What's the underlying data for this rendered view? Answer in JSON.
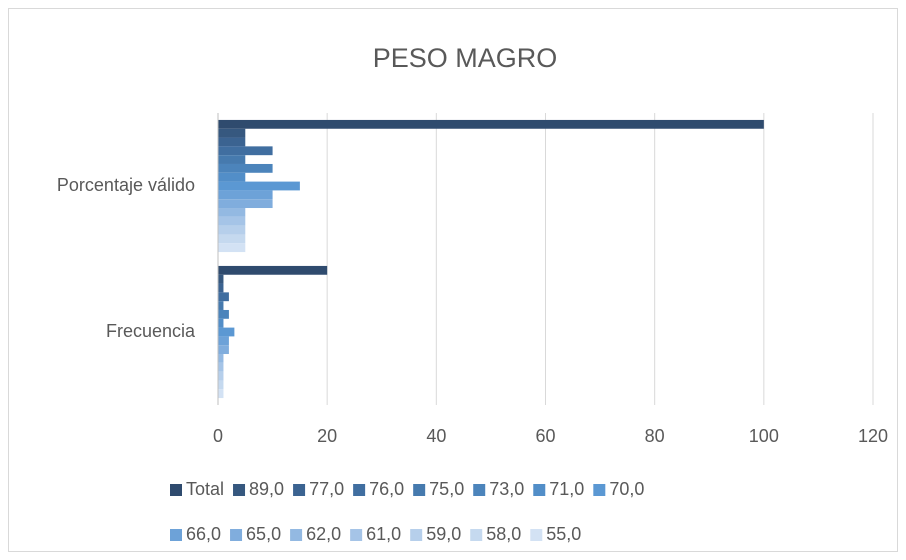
{
  "chart_data": {
    "type": "bar",
    "orientation": "horizontal",
    "title": "PESO MAGRO",
    "categories": [
      "Porcentaje válido",
      "Frecuencia"
    ],
    "series": [
      {
        "name": "Total",
        "color": "#2f4b6e",
        "values": [
          100,
          20
        ]
      },
      {
        "name": "89,0",
        "color": "#36587f",
        "values": [
          5,
          1
        ]
      },
      {
        "name": "77,0",
        "color": "#3b6391",
        "values": [
          5,
          1
        ]
      },
      {
        "name": "76,0",
        "color": "#406ea0",
        "values": [
          10,
          2
        ]
      },
      {
        "name": "75,0",
        "color": "#467aae",
        "values": [
          5,
          1
        ]
      },
      {
        "name": "73,0",
        "color": "#4c84bb",
        "values": [
          10,
          2
        ]
      },
      {
        "name": "71,0",
        "color": "#528ec8",
        "values": [
          5,
          1
        ]
      },
      {
        "name": "70,0",
        "color": "#5b98d3",
        "values": [
          15,
          3
        ]
      },
      {
        "name": "66,0",
        "color": "#6da2d8",
        "values": [
          10,
          2
        ]
      },
      {
        "name": "65,0",
        "color": "#80addd",
        "values": [
          10,
          2
        ]
      },
      {
        "name": "62,0",
        "color": "#93b9e2",
        "values": [
          5,
          1
        ]
      },
      {
        "name": "61,0",
        "color": "#a5c4e7",
        "values": [
          5,
          1
        ]
      },
      {
        "name": "59,0",
        "color": "#b6cfeb",
        "values": [
          5,
          1
        ]
      },
      {
        "name": "58,0",
        "color": "#c5d9ef",
        "values": [
          5,
          1
        ]
      },
      {
        "name": "55,0",
        "color": "#d3e2f4",
        "values": [
          5,
          1
        ]
      }
    ],
    "xlim": [
      0,
      120
    ],
    "xticks": [
      0,
      20,
      40,
      60,
      80,
      100,
      120
    ],
    "grid": true,
    "legend": "bottom"
  }
}
